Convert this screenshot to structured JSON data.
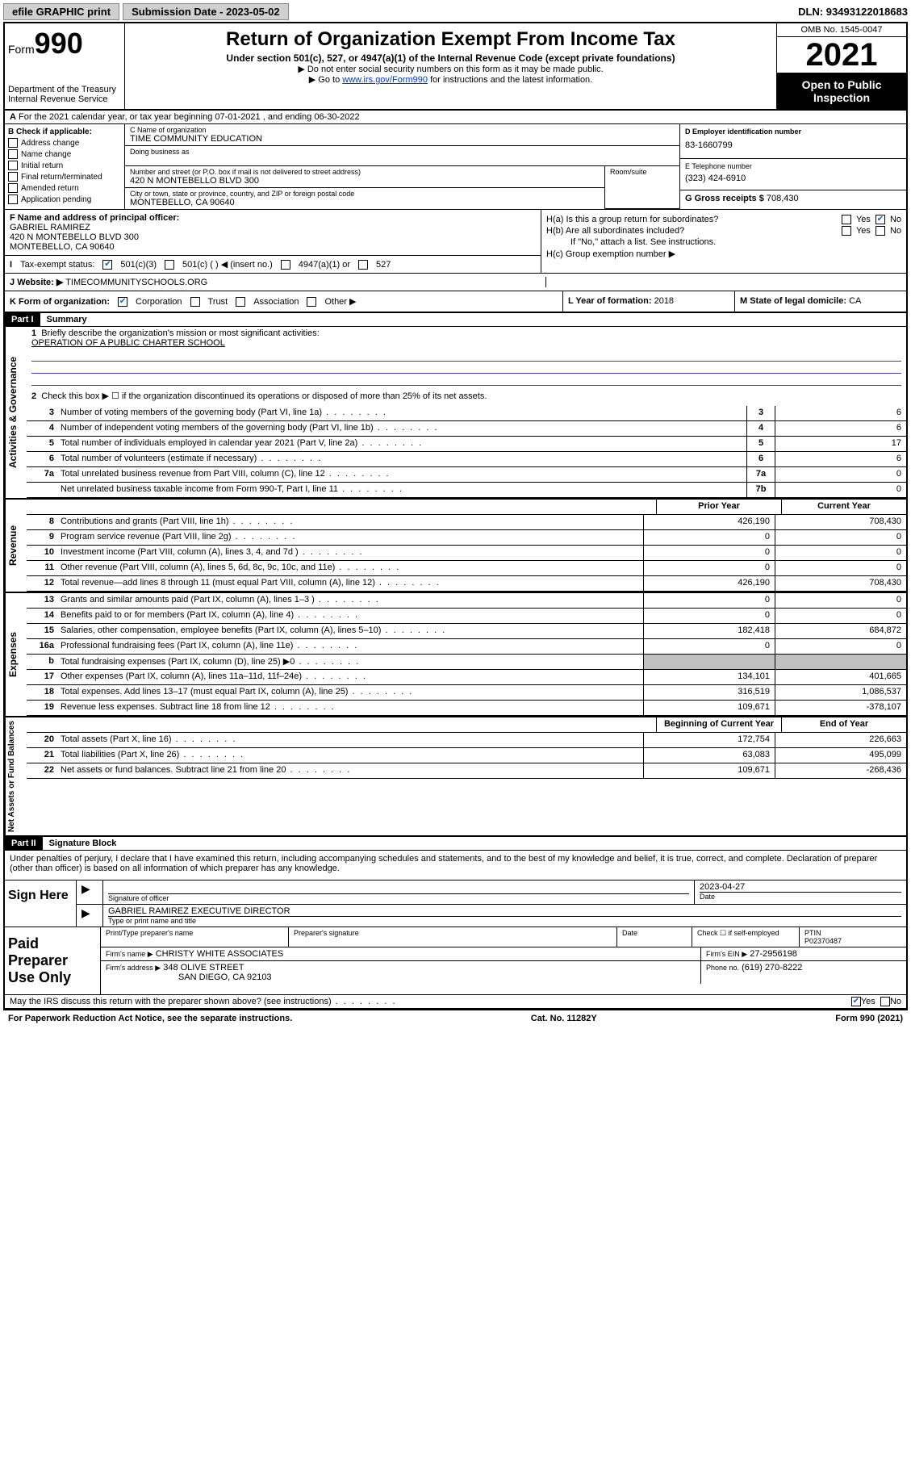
{
  "topbar": {
    "efile": "efile GRAPHIC print",
    "submission_label": "Submission Date - 2023-05-02",
    "dln": "DLN: 93493122018683"
  },
  "header": {
    "form_label": "Form",
    "form_num": "990",
    "title": "Return of Organization Exempt From Income Tax",
    "subtitle": "Under section 501(c), 527, or 4947(a)(1) of the Internal Revenue Code (except private foundations)",
    "note1": "▶ Do not enter social security numbers on this form as it may be made public.",
    "note2_pre": "▶ Go to ",
    "note2_link": "www.irs.gov/Form990",
    "note2_post": " for instructions and the latest information.",
    "dept": "Department of the Treasury Internal Revenue Service",
    "omb": "OMB No. 1545-0047",
    "year": "2021",
    "open": "Open to Public Inspection"
  },
  "row_a": "For the 2021 calendar year, or tax year beginning 07-01-2021     , and ending 06-30-2022",
  "section_b": {
    "label": "B Check if applicable:",
    "items": [
      "Address change",
      "Name change",
      "Initial return",
      "Final return/terminated",
      "Amended return",
      "Application pending"
    ]
  },
  "section_c": {
    "name_label": "C Name of organization",
    "name": "TIME COMMUNITY EDUCATION",
    "dba_label": "Doing business as",
    "addr_label": "Number and street (or P.O. box if mail is not delivered to street address)",
    "room_label": "Room/suite",
    "addr": "420 N MONTEBELLO BLVD 300",
    "city_label": "City or town, state or province, country, and ZIP or foreign postal code",
    "city": "MONTEBELLO, CA  90640"
  },
  "section_d": {
    "ein_label": "D Employer identification number",
    "ein": "83-1660799",
    "tel_label": "E Telephone number",
    "tel": "(323) 424-6910",
    "gross_label": "G Gross receipts $",
    "gross": "708,430"
  },
  "section_f": {
    "label": "F Name and address of principal officer:",
    "name": "GABRIEL RAMIREZ",
    "addr1": "420 N MONTEBELLO BLVD 300",
    "addr2": "MONTEBELLO, CA  90640"
  },
  "section_h": {
    "ha": "H(a)  Is this a group return for subordinates?",
    "hb": "H(b)  Are all subordinates included?",
    "hb_note": "If \"No,\" attach a list. See instructions.",
    "hc": "H(c)  Group exemption number ▶",
    "yes": "Yes",
    "no": "No"
  },
  "row_i": {
    "label": "Tax-exempt status:",
    "opts": [
      "501(c)(3)",
      "501(c) (  ) ◀ (insert no.)",
      "4947(a)(1) or",
      "527"
    ]
  },
  "row_j": {
    "label": "Website: ▶",
    "value": "TIMECOMMUNITYSCHOOLS.ORG"
  },
  "row_k": {
    "label": "K Form of organization:",
    "opts": [
      "Corporation",
      "Trust",
      "Association",
      "Other ▶"
    ],
    "l_label": "L Year of formation:",
    "l_val": "2018",
    "m_label": "M State of legal domicile:",
    "m_val": "CA"
  },
  "part1": {
    "label": "Part I",
    "title": "Summary",
    "q1": "Briefly describe the organization's mission or most significant activities:",
    "q1_ans": "OPERATION OF A PUBLIC CHARTER SCHOOL",
    "q2": "Check this box ▶ ☐  if the organization discontinued its operations or disposed of more than 25% of its net assets.",
    "vert1": "Activities & Governance",
    "vert2": "Revenue",
    "vert3": "Expenses",
    "vert4": "Net Assets or Fund Balances",
    "prior": "Prior Year",
    "current": "Current Year",
    "begin": "Beginning of Current Year",
    "end": "End of Year",
    "rows_gov": [
      {
        "n": "3",
        "t": "Number of voting members of the governing body (Part VI, line 1a)",
        "c": "3",
        "v": "6"
      },
      {
        "n": "4",
        "t": "Number of independent voting members of the governing body (Part VI, line 1b)",
        "c": "4",
        "v": "6"
      },
      {
        "n": "5",
        "t": "Total number of individuals employed in calendar year 2021 (Part V, line 2a)",
        "c": "5",
        "v": "17"
      },
      {
        "n": "6",
        "t": "Total number of volunteers (estimate if necessary)",
        "c": "6",
        "v": "6"
      },
      {
        "n": "7a",
        "t": "Total unrelated business revenue from Part VIII, column (C), line 12",
        "c": "7a",
        "v": "0"
      },
      {
        "n": "",
        "t": "Net unrelated business taxable income from Form 990-T, Part I, line 11",
        "c": "7b",
        "v": "0"
      }
    ],
    "rows_rev": [
      {
        "n": "8",
        "t": "Contributions and grants (Part VIII, line 1h)",
        "p": "426,190",
        "c": "708,430"
      },
      {
        "n": "9",
        "t": "Program service revenue (Part VIII, line 2g)",
        "p": "0",
        "c": "0"
      },
      {
        "n": "10",
        "t": "Investment income (Part VIII, column (A), lines 3, 4, and 7d )",
        "p": "0",
        "c": "0"
      },
      {
        "n": "11",
        "t": "Other revenue (Part VIII, column (A), lines 5, 6d, 8c, 9c, 10c, and 11e)",
        "p": "0",
        "c": "0"
      },
      {
        "n": "12",
        "t": "Total revenue—add lines 8 through 11 (must equal Part VIII, column (A), line 12)",
        "p": "426,190",
        "c": "708,430"
      }
    ],
    "rows_exp": [
      {
        "n": "13",
        "t": "Grants and similar amounts paid (Part IX, column (A), lines 1–3 )",
        "p": "0",
        "c": "0"
      },
      {
        "n": "14",
        "t": "Benefits paid to or for members (Part IX, column (A), line 4)",
        "p": "0",
        "c": "0"
      },
      {
        "n": "15",
        "t": "Salaries, other compensation, employee benefits (Part IX, column (A), lines 5–10)",
        "p": "182,418",
        "c": "684,872"
      },
      {
        "n": "16a",
        "t": "Professional fundraising fees (Part IX, column (A), line 11e)",
        "p": "0",
        "c": "0"
      },
      {
        "n": "b",
        "t": "Total fundraising expenses (Part IX, column (D), line 25) ▶0",
        "p": "",
        "c": "",
        "shaded": true
      },
      {
        "n": "17",
        "t": "Other expenses (Part IX, column (A), lines 11a–11d, 11f–24e)",
        "p": "134,101",
        "c": "401,665"
      },
      {
        "n": "18",
        "t": "Total expenses. Add lines 13–17 (must equal Part IX, column (A), line 25)",
        "p": "316,519",
        "c": "1,086,537"
      },
      {
        "n": "19",
        "t": "Revenue less expenses. Subtract line 18 from line 12",
        "p": "109,671",
        "c": "-378,107"
      }
    ],
    "rows_net": [
      {
        "n": "20",
        "t": "Total assets (Part X, line 16)",
        "p": "172,754",
        "c": "226,663"
      },
      {
        "n": "21",
        "t": "Total liabilities (Part X, line 26)",
        "p": "63,083",
        "c": "495,099"
      },
      {
        "n": "22",
        "t": "Net assets or fund balances. Subtract line 21 from line 20",
        "p": "109,671",
        "c": "-268,436"
      }
    ]
  },
  "part2": {
    "label": "Part II",
    "title": "Signature Block",
    "declaration": "Under penalties of perjury, I declare that I have examined this return, including accompanying schedules and statements, and to the best of my knowledge and belief, it is true, correct, and complete. Declaration of preparer (other than officer) is based on all information of which preparer has any knowledge."
  },
  "sign": {
    "label": "Sign Here",
    "sig_label": "Signature of officer",
    "date_label": "Date",
    "date": "2023-04-27",
    "name": "GABRIEL RAMIREZ  EXECUTIVE DIRECTOR",
    "name_label": "Type or print name and title"
  },
  "prep": {
    "label": "Paid Preparer Use Only",
    "h1": "Print/Type preparer's name",
    "h2": "Preparer's signature",
    "h3": "Date",
    "h4_pre": "Check ☐ if self-employed",
    "h5": "PTIN",
    "ptin": "P02370487",
    "firm_name_label": "Firm's name    ▶",
    "firm_name": "CHRISTY WHITE ASSOCIATES",
    "firm_ein_label": "Firm's EIN ▶",
    "firm_ein": "27-2956198",
    "firm_addr_label": "Firm's address ▶",
    "firm_addr1": "348 OLIVE STREET",
    "firm_addr2": "SAN DIEGO, CA  92103",
    "phone_label": "Phone no.",
    "phone": "(619) 270-8222"
  },
  "footer": {
    "discuss": "May the IRS discuss this return with the preparer shown above? (see instructions)",
    "yes": "Yes",
    "no": "No",
    "paperwork": "For Paperwork Reduction Act Notice, see the separate instructions.",
    "cat": "Cat. No. 11282Y",
    "form": "Form 990 (2021)"
  }
}
